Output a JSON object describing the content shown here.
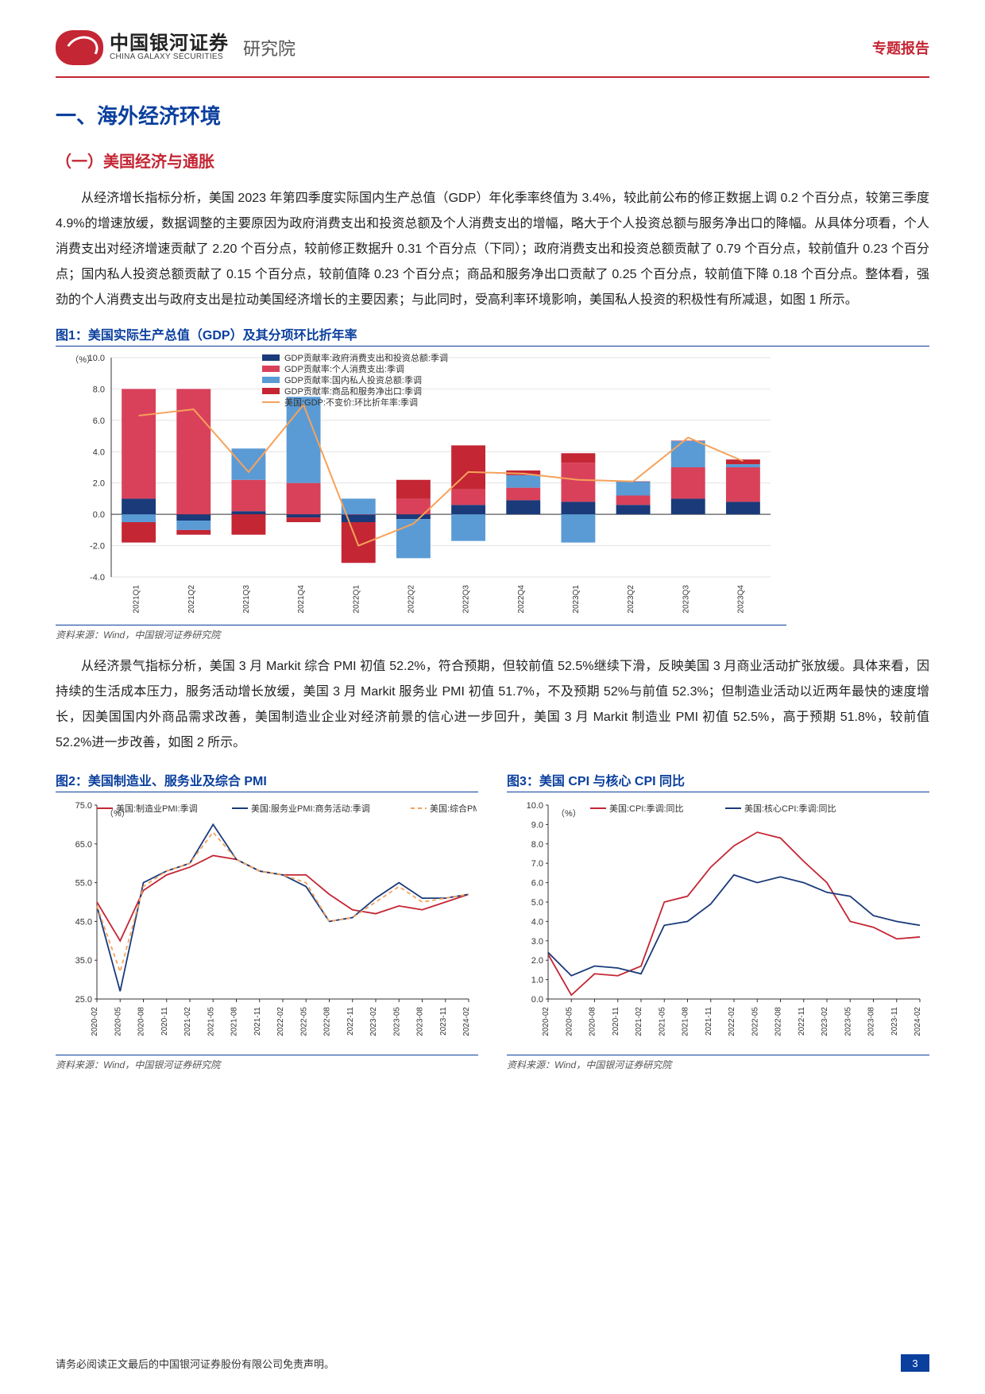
{
  "header": {
    "logo_cn": "中国银河证券",
    "logo_en": "CHINA GALAXY SECURITIES",
    "institute": "研究院",
    "report_tag": "专题报告"
  },
  "section1_title": "一、海外经济环境",
  "section1_1_title": "（一）美国经济与通胀",
  "para1": "从经济增长指标分析，美国 2023 年第四季度实际国内生产总值（GDP）年化季率终值为 3.4%，较此前公布的修正数据上调 0.2 个百分点，较第三季度 4.9%的增速放缓，数据调整的主要原因为政府消费支出和投资总额及个人消费支出的增幅，略大于个人投资总额与服务净出口的降幅。从具体分项看，个人消费支出对经济增速贡献了 2.20 个百分点，较前修正数据升 0.31 个百分点（下同）；政府消费支出和投资总额贡献了 0.79 个百分点，较前值升 0.23 个百分点；国内私人投资总额贡献了 0.15 个百分点，较前值降 0.23 个百分点；商品和服务净出口贡献了 0.25 个百分点，较前值下降 0.18 个百分点。整体看，强劲的个人消费支出与政府支出是拉动美国经济增长的主要因素；与此同时，受高利率环境影响，美国私人投资的积极性有所减退，如图 1 所示。",
  "para2": "从经济景气指标分析，美国 3 月 Markit 综合 PMI 初值 52.2%，符合预期，但较前值 52.5%继续下滑，反映美国 3 月商业活动扩张放缓。具体来看，因持续的生活成本压力，服务活动增长放缓，美国 3 月 Markit 服务业 PMI 初值 51.7%，不及预期 52%与前值 52.3%；但制造业活动以近两年最快的速度增长，因美国国内外商品需求改善，美国制造业企业对经济前景的信心进一步回升，美国 3 月 Markit 制造业 PMI 初值 52.5%，高于预期 51.8%，较前值 52.2%进一步改善，如图 2 所示。",
  "fig1": {
    "title": "图1：美国实际生产总值（GDP）及其分项环比折年率",
    "source": "资料来源：Wind，中国银河证券研究院",
    "unit": "（%）",
    "type": "stacked-bar-line",
    "categories": [
      "2021Q1",
      "2021Q2",
      "2021Q3",
      "2021Q4",
      "2022Q1",
      "2022Q2",
      "2022Q3",
      "2022Q4",
      "2023Q1",
      "2023Q2",
      "2023Q3",
      "2023Q4"
    ],
    "series": [
      {
        "name": "GDP贡献率:政府消费支出和投资总额:季调",
        "color": "#1a3a7a",
        "data": [
          1.0,
          -0.4,
          0.2,
          -0.2,
          -0.5,
          -0.3,
          0.6,
          0.9,
          0.8,
          0.6,
          1.0,
          0.8
        ]
      },
      {
        "name": "GDP贡献率:个人消费支出:季调",
        "color": "#d9415a",
        "data": [
          7.0,
          8.0,
          2.0,
          2.0,
          0.0,
          1.0,
          1.0,
          0.8,
          2.5,
          0.6,
          2.0,
          2.2
        ]
      },
      {
        "name": "GDP贡献率:国内私人投资总额:季调",
        "color": "#5a9bd5",
        "data": [
          -0.5,
          -0.6,
          2.0,
          5.5,
          1.0,
          -2.5,
          -1.7,
          0.8,
          -1.8,
          0.9,
          1.7,
          0.2
        ]
      },
      {
        "name": "GDP贡献率:商品和服务净出口:季调",
        "color": "#c42634",
        "data": [
          -1.3,
          -0.3,
          -1.3,
          -0.3,
          -2.6,
          1.2,
          2.8,
          0.3,
          0.6,
          0.0,
          0.0,
          0.3
        ]
      }
    ],
    "line": {
      "name": "美国:GDP:不变价:环比折年率:季调",
      "color": "#f6a25b",
      "data": [
        6.3,
        6.7,
        2.7,
        7.0,
        -2.0,
        -0.6,
        2.7,
        2.6,
        2.2,
        2.1,
        4.9,
        3.4
      ]
    },
    "ylim": [
      -4,
      10
    ],
    "ytick_step": 2,
    "plot_bg": "#ffffff",
    "grid_color": "#bfbfbf",
    "bar_group_width": 0.62
  },
  "fig2": {
    "title": "图2：美国制造业、服务业及综合 PMI",
    "source": "资料来源：Wind，中国银河证券研究院",
    "unit": "（%）",
    "type": "line",
    "categories": [
      "2020-02",
      "2020-05",
      "2020-08",
      "2020-11",
      "2021-02",
      "2021-05",
      "2021-08",
      "2021-11",
      "2022-02",
      "2022-05",
      "2022-08",
      "2022-11",
      "2023-02",
      "2023-05",
      "2023-08",
      "2023-11",
      "2024-02"
    ],
    "series": [
      {
        "name": "美国:制造业PMI:季调",
        "color": "#c42634",
        "dash": false,
        "data": [
          50,
          40,
          53,
          57,
          59,
          62,
          61,
          58,
          57,
          57,
          52,
          48,
          47,
          49,
          48,
          50,
          52
        ]
      },
      {
        "name": "美国:服务业PMI:商务活动:季调",
        "color": "#1a3a7a",
        "dash": false,
        "data": [
          49,
          27,
          55,
          58,
          60,
          70,
          61,
          58,
          57,
          54,
          45,
          46,
          51,
          55,
          51,
          51,
          52
        ]
      },
      {
        "name": "美国:综合PMI",
        "color": "#f6a25b",
        "dash": true,
        "data": [
          49,
          32,
          54,
          58,
          60,
          68,
          61,
          58,
          57,
          55,
          45,
          46,
          50,
          54,
          50,
          51,
          52
        ]
      }
    ],
    "ylim": [
      25,
      75
    ],
    "ytick_step": 10
  },
  "fig3": {
    "title": "图3：美国 CPI 与核心 CPI 同比",
    "source": "资料来源：Wind，中国银河证券研究院",
    "unit": "（%）",
    "type": "line",
    "categories": [
      "2020-02",
      "2020-05",
      "2020-08",
      "2020-11",
      "2021-02",
      "2021-05",
      "2021-08",
      "2021-11",
      "2022-02",
      "2022-05",
      "2022-08",
      "2022-11",
      "2023-02",
      "2023-05",
      "2023-08",
      "2023-11",
      "2024-02"
    ],
    "series": [
      {
        "name": "美国:CPI:季调:同比",
        "color": "#c42634",
        "dash": false,
        "data": [
          2.3,
          0.2,
          1.3,
          1.2,
          1.7,
          5.0,
          5.3,
          6.8,
          7.9,
          8.6,
          8.3,
          7.1,
          6.0,
          4.0,
          3.7,
          3.1,
          3.2
        ]
      },
      {
        "name": "美国:核心CPI:季调:同比",
        "color": "#1a3a7a",
        "dash": false,
        "data": [
          2.4,
          1.2,
          1.7,
          1.6,
          1.3,
          3.8,
          4.0,
          4.9,
          6.4,
          6.0,
          6.3,
          6.0,
          5.5,
          5.3,
          4.3,
          4.0,
          3.8
        ]
      }
    ],
    "ylim": [
      0,
      10
    ],
    "ytick_step": 1
  },
  "footer": {
    "disclaimer": "请务必阅读正文最后的中国银河证券股份有限公司免责声明。",
    "page": "3"
  }
}
